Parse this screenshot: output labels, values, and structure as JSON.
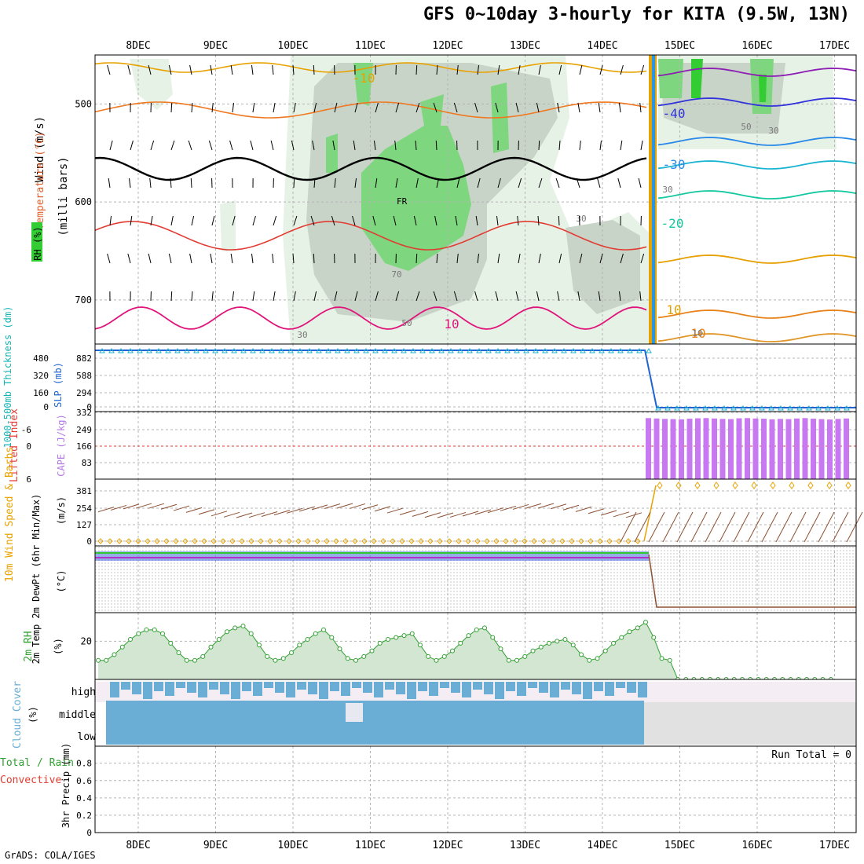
{
  "header": {
    "title": "GFS 0~10day 3-hourly for KITA (9.5W, 13N)",
    "footer": "GrADS: COLA/IGES"
  },
  "chart_data": [
    {
      "type": "area",
      "name": "upper-air",
      "ylabel_parts": [
        "RH (%)",
        "Temperature (°C)",
        "Wind (m/s)"
      ],
      "ylabel2": "(milli bars)",
      "y_ticks": [
        500,
        600,
        700
      ],
      "ylim": [
        745,
        450
      ],
      "isotherm_labels": [
        "-10",
        "10",
        "-40",
        "-30",
        "-20",
        "10",
        "10"
      ],
      "rh_labels": [
        "30",
        "50",
        "70",
        "30",
        "30",
        "50",
        "30",
        "10"
      ],
      "freezing_label": "FR",
      "x_dates": [
        "8DEC",
        "9DEC",
        "10DEC",
        "11DEC",
        "12DEC",
        "13DEC",
        "14DEC",
        "15DEC",
        "16DEC",
        "17DEC"
      ],
      "colors": {
        "rh_light": "#e7f2e7",
        "rh_mid": "#c9d4c9",
        "rh_high": "#7ed67e",
        "rh_max": "#33cc33"
      }
    },
    {
      "type": "line",
      "name": "sfc-pressure",
      "ylabel_left": "1000-500mb Thickness (dm)",
      "ylabel_right": "SLP (mb)",
      "left_ticks": [
        "0",
        "160",
        "320",
        "480"
      ],
      "right_ticks": [
        "0",
        "294",
        "588",
        "882"
      ],
      "series": [
        {
          "values_before": 1000,
          "values_after": 0,
          "break_day": 14.6
        }
      ]
    },
    {
      "type": "bar",
      "name": "cape",
      "ylabel_left": "Lifted Index",
      "ylabel_right": "CAPE (J/kg)",
      "left_ticks": [
        "6",
        "0",
        "-6"
      ],
      "right_ticks": [
        "83",
        "166",
        "249",
        "332"
      ],
      "cape_values": [
        300,
        298,
        296,
        295,
        294,
        297,
        299,
        300,
        298,
        296,
        295,
        299,
        300,
        298,
        297,
        294,
        296,
        295,
        298,
        300,
        297,
        295,
        293,
        296,
        298
      ]
    },
    {
      "type": "line",
      "name": "wind10m",
      "ylabel_left": "10m Wind Speed & Barbs",
      "ylabel_right": "(m/s)",
      "right_ticks": [
        "0",
        "127",
        "254",
        "381"
      ],
      "speed_before": 0,
      "speed_after": 381
    },
    {
      "type": "line",
      "name": "temp2m",
      "ylabel_left": "2m Temp 2m DewPt (6hr Min/Max)",
      "ylabel_right": "(°C)"
    },
    {
      "type": "area",
      "name": "rh2m",
      "ylabel_left": "2m RH",
      "ylabel_right": "(%)",
      "y_ticks": [
        "20"
      ],
      "values": [
        10,
        10,
        13,
        17,
        21,
        24,
        26,
        26,
        24,
        19,
        14,
        10,
        10,
        12,
        17,
        21,
        25,
        27,
        28,
        24,
        18,
        12,
        10,
        11,
        14,
        18,
        21,
        24,
        26,
        22,
        16,
        11,
        10,
        12,
        15,
        19,
        21,
        22,
        23,
        24,
        18,
        12,
        10,
        12,
        15,
        19,
        23,
        26,
        27,
        22,
        16,
        10,
        10,
        12,
        15,
        17,
        19,
        20,
        21,
        18,
        13,
        10,
        11,
        15,
        19,
        22,
        25,
        27,
        30,
        22,
        11,
        10,
        0,
        0,
        0,
        0,
        0,
        0,
        0,
        0,
        0,
        0,
        0,
        0,
        0,
        0,
        0,
        0,
        0,
        0,
        0,
        0
      ]
    },
    {
      "type": "bar",
      "name": "cloud",
      "ylabel_left": "Cloud Cover",
      "ylabel_right": "(%)",
      "levels": [
        "high",
        "middle",
        "low"
      ]
    },
    {
      "type": "bar",
      "name": "precip",
      "ylabel_left": "Total / Rain",
      "ylabel_left2": "Convective",
      "ylabel_right": "3hr Precip (mm)",
      "y_ticks": [
        "0",
        "0.2",
        "0.4",
        "0.6",
        "0.8"
      ],
      "run_total": "Run Total = 0"
    }
  ]
}
